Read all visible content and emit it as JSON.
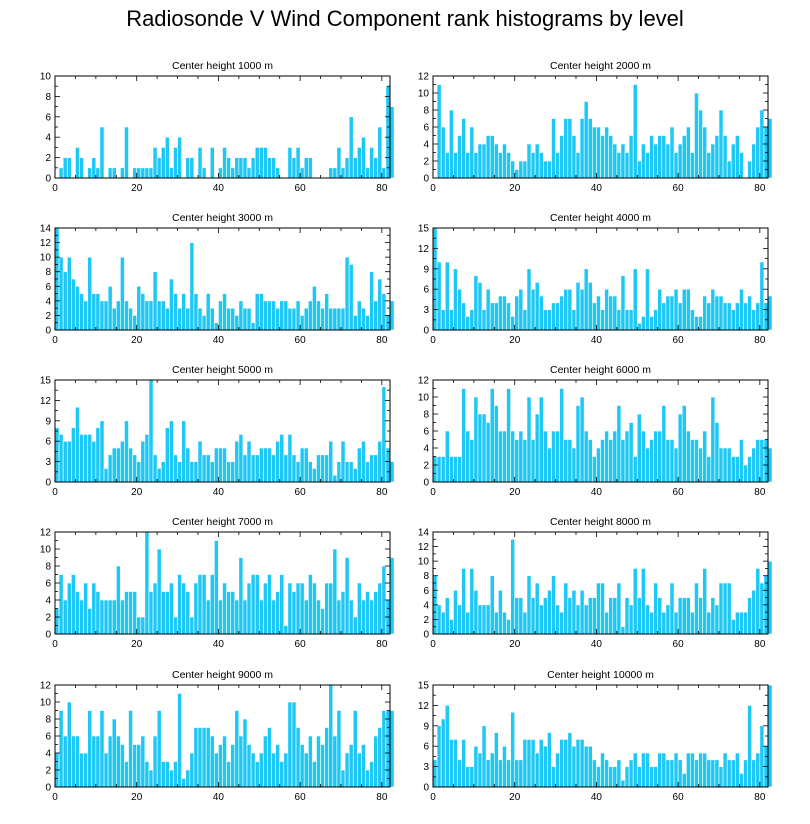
{
  "title": "Radiosonde V Wind Component rank histograms by level",
  "colors": {
    "bar": "#1ec8f5",
    "bar_stroke": "#ffffff",
    "axis": "#000000",
    "background": "#ffffff"
  },
  "chart_data": [
    {
      "type": "bar",
      "title": "Center height 1000 m",
      "xlim": [
        0,
        82
      ],
      "ylim": [
        0,
        10
      ],
      "xticks": [
        0,
        20,
        40,
        60,
        80
      ],
      "yticks": [
        0,
        2,
        4,
        6,
        8,
        10
      ],
      "values": [
        0,
        1,
        2,
        2,
        0,
        3,
        2,
        0,
        1,
        2,
        1,
        5,
        0,
        1,
        1,
        0,
        1,
        5,
        0,
        1,
        1,
        1,
        1,
        1,
        3,
        2,
        3,
        4,
        1,
        3,
        4,
        0,
        2,
        2,
        0,
        3,
        1,
        0,
        3,
        0,
        1,
        3,
        2,
        1,
        2,
        2,
        2,
        1,
        2,
        3,
        3,
        3,
        2,
        2,
        1,
        0,
        0,
        3,
        2,
        3,
        1,
        2,
        2,
        0,
        0,
        0,
        0,
        1,
        1,
        3,
        1,
        2,
        6,
        2,
        3,
        4,
        1,
        3,
        2,
        5,
        1,
        9,
        7
      ]
    },
    {
      "type": "bar",
      "title": "Center height 2000 m",
      "xlim": [
        0,
        82
      ],
      "ylim": [
        0,
        12
      ],
      "xticks": [
        0,
        20,
        40,
        60,
        80
      ],
      "yticks": [
        0,
        2,
        4,
        6,
        8,
        10,
        12
      ],
      "values": [
        0,
        11,
        6,
        3,
        8,
        3,
        5,
        7,
        3,
        6,
        3,
        4,
        4,
        5,
        5,
        4,
        3,
        4,
        3,
        2,
        1,
        2,
        2,
        4,
        3,
        4,
        3,
        2,
        2,
        7,
        3,
        5,
        7,
        7,
        5,
        3,
        7,
        9,
        7,
        6,
        6,
        5,
        6,
        5,
        4,
        3,
        4,
        3,
        5,
        11,
        2,
        4,
        3,
        5,
        4,
        5,
        5,
        4,
        6,
        3,
        4,
        5,
        6,
        3,
        10,
        8,
        6,
        3,
        4,
        5,
        8,
        5,
        2,
        4,
        5,
        3,
        0,
        2,
        4,
        6,
        8,
        6,
        7
      ]
    },
    {
      "type": "bar",
      "title": "Center height 3000 m",
      "xlim": [
        0,
        82
      ],
      "ylim": [
        0,
        14
      ],
      "xticks": [
        0,
        20,
        40,
        60,
        80
      ],
      "yticks": [
        0,
        2,
        4,
        6,
        8,
        10,
        12,
        14
      ],
      "values": [
        14,
        10,
        8,
        10,
        7,
        6,
        5,
        4,
        10,
        5,
        5,
        4,
        4,
        6,
        3,
        4,
        10,
        4,
        3,
        2,
        6,
        5,
        4,
        4,
        8,
        4,
        4,
        3,
        7,
        5,
        3,
        5,
        3,
        12,
        5,
        3,
        2,
        5,
        3,
        1,
        4,
        5,
        3,
        3,
        2,
        4,
        3,
        3,
        1,
        5,
        5,
        4,
        4,
        4,
        3,
        4,
        4,
        3,
        3,
        4,
        2,
        3,
        4,
        6,
        4,
        3,
        5,
        3,
        3,
        3,
        3,
        10,
        9,
        2,
        4,
        3,
        2,
        8,
        4,
        7,
        5,
        2,
        4
      ]
    },
    {
      "type": "bar",
      "title": "Center height 4000 m",
      "xlim": [
        0,
        82
      ],
      "ylim": [
        0,
        15
      ],
      "xticks": [
        0,
        20,
        40,
        60,
        80
      ],
      "yticks": [
        0,
        3,
        6,
        9,
        12,
        15
      ],
      "values": [
        15,
        10,
        3,
        10,
        3,
        9,
        6,
        4,
        2,
        3,
        8,
        7,
        3,
        6,
        4,
        4,
        5,
        5,
        4,
        2,
        5,
        6,
        3,
        9,
        6,
        7,
        5,
        3,
        3,
        4,
        4,
        5,
        6,
        6,
        3,
        7,
        6,
        9,
        7,
        4,
        5,
        3,
        6,
        5,
        5,
        3,
        8,
        3,
        3,
        9,
        1,
        2,
        9,
        2,
        3,
        6,
        4,
        5,
        5,
        6,
        4,
        6,
        6,
        3,
        2,
        2,
        5,
        4,
        6,
        5,
        5,
        4,
        4,
        3,
        4,
        6,
        4,
        5,
        3,
        4,
        10,
        4,
        5
      ]
    },
    {
      "type": "bar",
      "title": "Center height 5000 m",
      "xlim": [
        0,
        82
      ],
      "ylim": [
        0,
        15
      ],
      "xticks": [
        0,
        20,
        40,
        60,
        80
      ],
      "yticks": [
        0,
        3,
        6,
        9,
        12,
        15
      ],
      "values": [
        8,
        7,
        6,
        6,
        8,
        11,
        7,
        7,
        7,
        6,
        8,
        9,
        2,
        4,
        5,
        5,
        6,
        9,
        5,
        4,
        3,
        6,
        7,
        15,
        4,
        2,
        3,
        8,
        9,
        4,
        3,
        9,
        5,
        3,
        3,
        6,
        4,
        4,
        3,
        5,
        5,
        5,
        3,
        3,
        6,
        7,
        4,
        6,
        4,
        4,
        5,
        5,
        5,
        4,
        6,
        7,
        4,
        7,
        4,
        3,
        5,
        5,
        3,
        2,
        4,
        4,
        4,
        6,
        1,
        3,
        6,
        3,
        3,
        2,
        5,
        6,
        3,
        4,
        4,
        6,
        14,
        5,
        3
      ]
    },
    {
      "type": "bar",
      "title": "Center height 6000 m",
      "xlim": [
        0,
        82
      ],
      "ylim": [
        0,
        12
      ],
      "xticks": [
        0,
        20,
        40,
        60,
        80
      ],
      "yticks": [
        0,
        2,
        4,
        6,
        8,
        10,
        12
      ],
      "values": [
        3,
        3,
        3,
        6,
        3,
        3,
        3,
        11,
        6,
        5,
        10,
        8,
        8,
        7,
        11,
        9,
        6,
        6,
        11,
        6,
        5,
        6,
        5,
        10,
        5,
        8,
        10,
        6,
        4,
        6,
        6,
        11,
        5,
        5,
        4,
        9,
        10,
        6,
        5,
        3,
        4,
        5,
        6,
        5,
        6,
        9,
        5,
        6,
        7,
        3,
        8,
        6,
        4,
        5,
        6,
        6,
        9,
        5,
        5,
        4,
        8,
        9,
        6,
        5,
        5,
        4,
        6,
        3,
        10,
        7,
        4,
        4,
        4,
        3,
        3,
        5,
        2,
        3,
        4,
        5,
        5,
        5,
        4
      ]
    },
    {
      "type": "bar",
      "title": "Center height 7000 m",
      "xlim": [
        0,
        82
      ],
      "ylim": [
        0,
        12
      ],
      "xticks": [
        0,
        20,
        40,
        60,
        80
      ],
      "yticks": [
        0,
        2,
        4,
        6,
        8,
        10,
        12
      ],
      "values": [
        3,
        7,
        4,
        6,
        7,
        5,
        4,
        6,
        3,
        6,
        5,
        4,
        4,
        4,
        4,
        8,
        4,
        5,
        5,
        5,
        2,
        2,
        12,
        5,
        6,
        10,
        5,
        5,
        6,
        2,
        7,
        6,
        5,
        2,
        6,
        7,
        7,
        4,
        7,
        11,
        4,
        6,
        5,
        5,
        4,
        9,
        4,
        6,
        7,
        7,
        4,
        6,
        7,
        4,
        5,
        7,
        1,
        6,
        5,
        6,
        6,
        4,
        7,
        6,
        4,
        3,
        6,
        6,
        10,
        4,
        5,
        9,
        4,
        2,
        6,
        4,
        5,
        4,
        5,
        6,
        8,
        4,
        9
      ]
    },
    {
      "type": "bar",
      "title": "Center height 8000 m",
      "xlim": [
        0,
        82
      ],
      "ylim": [
        0,
        14
      ],
      "xticks": [
        0,
        20,
        40,
        60,
        80
      ],
      "yticks": [
        0,
        2,
        4,
        6,
        8,
        10,
        12,
        14
      ],
      "values": [
        8,
        4,
        3,
        5,
        2,
        6,
        4,
        9,
        3,
        9,
        6,
        4,
        4,
        4,
        8,
        3,
        6,
        3,
        2,
        13,
        5,
        5,
        3,
        8,
        5,
        7,
        4,
        5,
        6,
        8,
        4,
        3,
        7,
        5,
        6,
        4,
        6,
        4,
        5,
        5,
        7,
        7,
        3,
        5,
        5,
        7,
        1,
        5,
        4,
        9,
        5,
        9,
        4,
        3,
        7,
        5,
        3,
        4,
        7,
        3,
        5,
        5,
        5,
        3,
        7,
        5,
        9,
        3,
        5,
        4,
        7,
        7,
        7,
        2,
        3,
        3,
        3,
        5,
        6,
        9,
        7,
        8,
        10
      ]
    },
    {
      "type": "bar",
      "title": "Center height 9000 m",
      "xlim": [
        0,
        82
      ],
      "ylim": [
        0,
        12
      ],
      "xticks": [
        0,
        20,
        40,
        60,
        80
      ],
      "yticks": [
        0,
        2,
        4,
        6,
        8,
        10,
        12
      ],
      "values": [
        4,
        9,
        6,
        10,
        6,
        6,
        4,
        4,
        9,
        6,
        6,
        9,
        4,
        6,
        8,
        6,
        5,
        3,
        9,
        5,
        5,
        6,
        3,
        2,
        6,
        9,
        3,
        3,
        2,
        3,
        11,
        1,
        2,
        4,
        7,
        7,
        7,
        7,
        6,
        4,
        5,
        6,
        3,
        5,
        9,
        6,
        8,
        5,
        4,
        3,
        4,
        6,
        7,
        4,
        5,
        3,
        4,
        10,
        10,
        7,
        5,
        4,
        6,
        3,
        6,
        5,
        7,
        12,
        6,
        9,
        2,
        4,
        5,
        9,
        4,
        5,
        2,
        3,
        6,
        7,
        9,
        9,
        9
      ]
    },
    {
      "type": "bar",
      "title": "Center height 10000 m",
      "xlim": [
        0,
        82
      ],
      "ylim": [
        0,
        15
      ],
      "xticks": [
        0,
        20,
        40,
        60,
        80
      ],
      "yticks": [
        0,
        3,
        6,
        9,
        12,
        15
      ],
      "values": [
        4,
        9,
        10,
        12,
        7,
        7,
        4,
        7,
        3,
        3,
        6,
        5,
        9,
        4,
        5,
        8,
        4,
        6,
        4,
        11,
        4,
        4,
        7,
        7,
        7,
        5,
        7,
        6,
        8,
        3,
        5,
        7,
        7,
        8,
        6,
        7,
        7,
        6,
        6,
        4,
        3,
        5,
        4,
        3,
        3,
        4,
        1,
        3,
        4,
        5,
        3,
        5,
        5,
        3,
        3,
        5,
        5,
        4,
        4,
        5,
        4,
        2,
        5,
        5,
        4,
        5,
        5,
        4,
        4,
        4,
        3,
        5,
        4,
        4,
        5,
        2,
        4,
        12,
        4,
        5,
        9,
        6,
        15
      ]
    }
  ]
}
